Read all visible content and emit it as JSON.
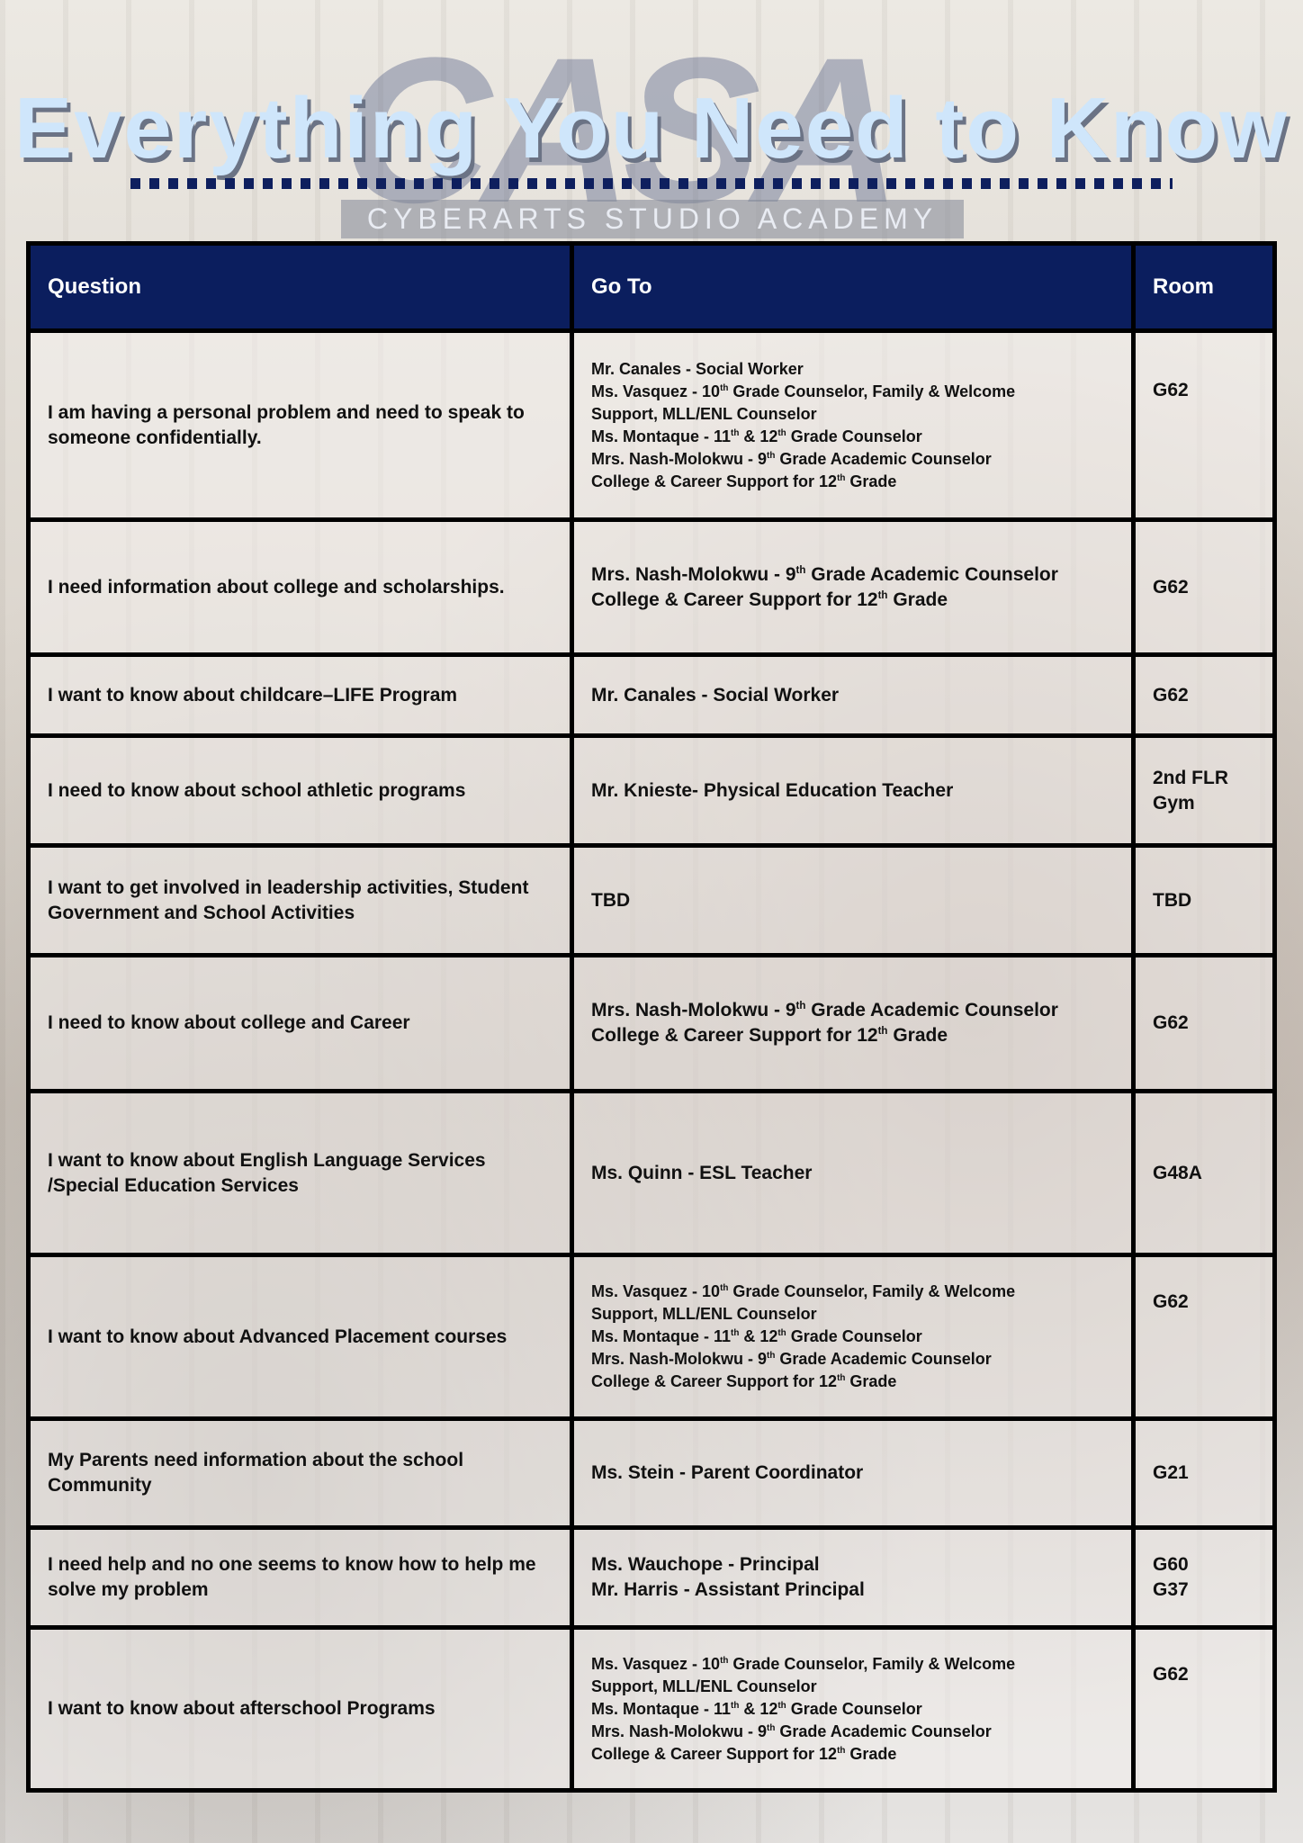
{
  "header": {
    "title": "Everything You Need to Know",
    "school": "CYBERARTS STUDIO ACADEMY",
    "logo_text": "CASA"
  },
  "table": {
    "columns": [
      "Question",
      "Go To",
      "Room"
    ],
    "rows": [
      {
        "question": "I am having a personal problem and need to speak to someone confidentially.",
        "small": true,
        "goto": [
          [
            {
              "t": "Mr. Canales - Social Worker"
            }
          ],
          [
            {
              "t": "Ms. Vasquez - 10"
            },
            {
              "s": "th"
            },
            {
              "t": " Grade Counselor, Family & Welcome"
            }
          ],
          [
            {
              "t": "Support, MLL/ENL Counselor"
            }
          ],
          [
            {
              "t": "Ms. Montaque - 11"
            },
            {
              "s": "th"
            },
            {
              "t": " & 12"
            },
            {
              "s": "th"
            },
            {
              "t": " Grade Counselor"
            }
          ],
          [
            {
              "t": "Mrs. Nash-Molokwu - 9"
            },
            {
              "s": "th"
            },
            {
              "t": " Grade Academic Counselor"
            }
          ],
          [
            {
              "t": "College & Career Support for 12"
            },
            {
              "s": "th"
            },
            {
              "t": " Grade"
            }
          ]
        ],
        "room": [
          "G62"
        ],
        "h": 210
      },
      {
        "question": "I need information about college and scholarships.",
        "small": false,
        "goto": [
          [
            {
              "t": "Mrs. Nash-Molokwu - 9"
            },
            {
              "s": "th"
            },
            {
              "t": " Grade Academic Counselor"
            }
          ],
          [
            {
              "t": "College & Career Support for 12"
            },
            {
              "s": "th"
            },
            {
              "t": " Grade"
            }
          ]
        ],
        "room": [
          "G62"
        ],
        "h": 150
      },
      {
        "question": "I want to know about childcare–LIFE Program",
        "small": false,
        "goto": [
          [
            {
              "t": "Mr. Canales - Social Worker"
            }
          ]
        ],
        "room": [
          "G62"
        ],
        "h": 90
      },
      {
        "question": "I need to know about school athletic programs",
        "small": false,
        "goto": [
          [
            {
              "t": "Mr. Knieste- Physical Education Teacher"
            }
          ]
        ],
        "room": [
          "2nd FLR",
          "Gym"
        ],
        "h": 122
      },
      {
        "question": "I want to get involved in leadership activities, Student Government and School Activities",
        "small": false,
        "goto": [
          [
            {
              "t": "TBD"
            }
          ]
        ],
        "room": [
          "TBD"
        ],
        "h": 122
      },
      {
        "question": "I need to know about college and Career",
        "small": false,
        "goto": [
          [
            {
              "t": "Mrs. Nash-Molokwu - 9"
            },
            {
              "s": "th"
            },
            {
              "t": " Grade Academic Counselor"
            }
          ],
          [
            {
              "t": "College & Career Support for 12"
            },
            {
              "s": "th"
            },
            {
              "t": " Grade"
            }
          ]
        ],
        "room": [
          "G62"
        ],
        "h": 151
      },
      {
        "question": "I want to know about English Language Services /Special Education Services",
        "small": false,
        "goto": [
          [
            {
              "t": "Ms. Quinn - ESL Teacher"
            }
          ]
        ],
        "room": [
          "G48A"
        ],
        "h": 182
      },
      {
        "question": "I want to know about Advanced Placement courses",
        "small": true,
        "goto": [
          [
            {
              "t": "Ms. Vasquez - 10"
            },
            {
              "s": "th"
            },
            {
              "t": " Grade Counselor, Family & Welcome"
            }
          ],
          [
            {
              "t": "Support, MLL/ENL Counselor"
            }
          ],
          [
            {
              "t": "Ms. Montaque - 11"
            },
            {
              "s": "th"
            },
            {
              "t": " & 12"
            },
            {
              "s": "th"
            },
            {
              "t": " Grade Counselor"
            }
          ],
          [
            {
              "t": "Mrs. Nash-Molokwu - 9"
            },
            {
              "s": "th"
            },
            {
              "t": " Grade Academic Counselor"
            }
          ],
          [
            {
              "t": "College & Career Support for 12"
            },
            {
              "s": "th"
            },
            {
              "t": " Grade"
            }
          ]
        ],
        "room": [
          "G62"
        ],
        "h": 182
      },
      {
        "question": "My Parents need information about the school Community",
        "small": false,
        "goto": [
          [
            {
              "t": "Ms. Stein - Parent Coordinator"
            }
          ]
        ],
        "room": [
          "G21"
        ],
        "h": 121
      },
      {
        "question": "I need help and no one seems to know how to help me solve my problem",
        "small": false,
        "goto": [
          [
            {
              "t": "Ms. Wauchope - Principal"
            }
          ],
          [
            {
              "t": "Mr. Harris - Assistant Principal"
            }
          ]
        ],
        "room": [
          "G60",
          "G37"
        ],
        "h": 111
      },
      {
        "question": "I want to know about afterschool Programs",
        "small": true,
        "goto": [
          [
            {
              "t": "Ms. Vasquez - 10"
            },
            {
              "s": "th"
            },
            {
              "t": " Grade Counselor, Family & Welcome"
            }
          ],
          [
            {
              "t": "Support, MLL/ENL Counselor"
            }
          ],
          [
            {
              "t": "Ms. Montaque - 11"
            },
            {
              "s": "th"
            },
            {
              "t": " & 12"
            },
            {
              "s": "th"
            },
            {
              "t": " Grade Counselor"
            }
          ],
          [
            {
              "t": "Mrs. Nash-Molokwu - 9"
            },
            {
              "s": "th"
            },
            {
              "t": " Grade Academic Counselor"
            }
          ],
          [
            {
              "t": "College & Career Support for 12"
            },
            {
              "s": "th"
            },
            {
              "t": " Grade"
            }
          ]
        ],
        "room": [
          "G62"
        ],
        "h": 181
      }
    ]
  },
  "colors": {
    "header_bg": "#0b1e5e",
    "title": "#cfe6fb",
    "dots": "#0e1f5e"
  }
}
